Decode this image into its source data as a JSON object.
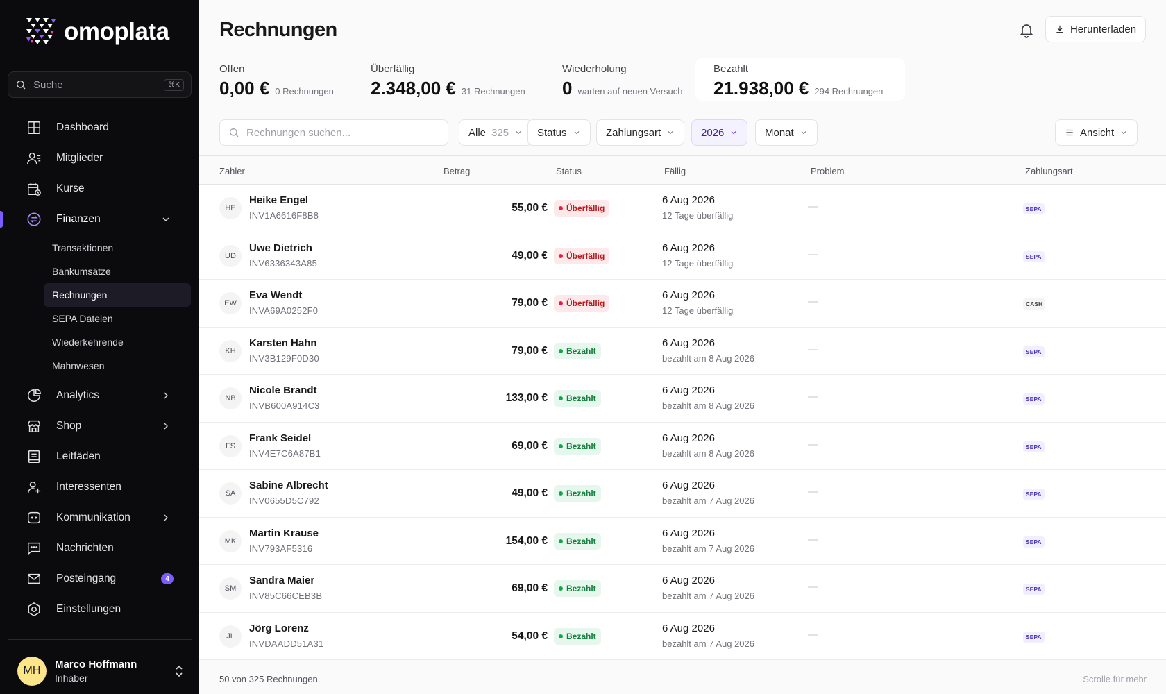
{
  "brand": {
    "name": "omoplata"
  },
  "sidebar": {
    "search_placeholder": "Suche",
    "search_shortcut": "⌘K",
    "items": [
      {
        "id": "dashboard",
        "label": "Dashboard",
        "icon": "dashboard-icon"
      },
      {
        "id": "mitglieder",
        "label": "Mitglieder",
        "icon": "members-icon"
      },
      {
        "id": "kurse",
        "label": "Kurse",
        "icon": "calendar-icon"
      },
      {
        "id": "finanzen",
        "label": "Finanzen",
        "icon": "finance-icon",
        "active": true,
        "expanded": true
      },
      {
        "id": "analytics",
        "label": "Analytics",
        "icon": "pie-chart-icon"
      },
      {
        "id": "shop",
        "label": "Shop",
        "icon": "store-icon"
      },
      {
        "id": "leitfaeden",
        "label": "Leitfäden",
        "icon": "book-icon"
      },
      {
        "id": "interessenten",
        "label": "Interessenten",
        "icon": "user-plus-icon"
      },
      {
        "id": "kommunikation",
        "label": "Kommunikation",
        "icon": "chat-bubble-icon"
      },
      {
        "id": "nachrichten",
        "label": "Nachrichten",
        "icon": "message-icon"
      },
      {
        "id": "posteingang",
        "label": "Posteingang",
        "icon": "mail-icon",
        "badge": "4"
      },
      {
        "id": "einstellungen",
        "label": "Einstellungen",
        "icon": "settings-icon"
      }
    ],
    "finanzen_sub": [
      "Transaktionen",
      "Bankumsätze",
      "Rechnungen",
      "SEPA Dateien",
      "Wiederkehrende",
      "Mahnwesen"
    ],
    "user": {
      "initials": "MH",
      "name": "Marco Hoffmann",
      "role": "Inhaber"
    }
  },
  "header": {
    "title": "Rechnungen",
    "download_label": "Herunterladen"
  },
  "stats": {
    "offen": {
      "label": "Offen",
      "value": "0,00 €",
      "sub": "0 Rechnungen"
    },
    "ueberfaellig": {
      "label": "Überfällig",
      "value": "2.348,00 €",
      "sub": "31 Rechnungen"
    },
    "wiederholung": {
      "label": "Wiederholung",
      "value": "0",
      "sub": "warten auf neuen Versuch"
    },
    "bezahlt": {
      "label": "Bezahlt",
      "value": "21.938,00 €",
      "sub": "294 Rechnungen"
    }
  },
  "filters": {
    "search_placeholder": "Rechnungen suchen...",
    "alle_label": "Alle",
    "alle_count": "325",
    "status_label": "Status",
    "zahlungsart_label": "Zahlungsart",
    "year_label": "2026",
    "monat_label": "Monat",
    "ansicht_label": "Ansicht"
  },
  "table": {
    "columns": [
      "Zahler",
      "Betrag",
      "Status",
      "Fällig",
      "Problem",
      "Zahlungsart"
    ],
    "rows": [
      {
        "initials": "HE",
        "name": "Heike Engel",
        "id": "INV1A6616F8B8",
        "amount": "55,00 €",
        "status": "Überfällig",
        "status_type": "overdue",
        "due": "6 Aug 2026",
        "due_sub": "12 Tage überfällig",
        "problem": "—",
        "method": "SEPA"
      },
      {
        "initials": "UD",
        "name": "Uwe Dietrich",
        "id": "INV6336343A85",
        "amount": "49,00 €",
        "status": "Überfällig",
        "status_type": "overdue",
        "due": "6 Aug 2026",
        "due_sub": "12 Tage überfällig",
        "problem": "—",
        "method": "SEPA"
      },
      {
        "initials": "EW",
        "name": "Eva Wendt",
        "id": "INVA69A0252F0",
        "amount": "79,00 €",
        "status": "Überfällig",
        "status_type": "overdue",
        "due": "6 Aug 2026",
        "due_sub": "12 Tage überfällig",
        "problem": "—",
        "method": "CASH"
      },
      {
        "initials": "KH",
        "name": "Karsten Hahn",
        "id": "INV3B129F0D30",
        "amount": "79,00 €",
        "status": "Bezahlt",
        "status_type": "paid",
        "due": "6 Aug 2026",
        "due_sub": "bezahlt am 8 Aug 2026",
        "problem": "—",
        "method": "SEPA"
      },
      {
        "initials": "NB",
        "name": "Nicole Brandt",
        "id": "INVB600A914C3",
        "amount": "133,00 €",
        "status": "Bezahlt",
        "status_type": "paid",
        "due": "6 Aug 2026",
        "due_sub": "bezahlt am 8 Aug 2026",
        "problem": "—",
        "method": "SEPA"
      },
      {
        "initials": "FS",
        "name": "Frank Seidel",
        "id": "INV4E7C6A87B1",
        "amount": "69,00 €",
        "status": "Bezahlt",
        "status_type": "paid",
        "due": "6 Aug 2026",
        "due_sub": "bezahlt am 8 Aug 2026",
        "problem": "—",
        "method": "SEPA"
      },
      {
        "initials": "SA",
        "name": "Sabine Albrecht",
        "id": "INV0655D5C792",
        "amount": "49,00 €",
        "status": "Bezahlt",
        "status_type": "paid",
        "due": "6 Aug 2026",
        "due_sub": "bezahlt am 7 Aug 2026",
        "problem": "—",
        "method": "SEPA"
      },
      {
        "initials": "MK",
        "name": "Martin Krause",
        "id": "INV793AF5316",
        "amount": "154,00 €",
        "status": "Bezahlt",
        "status_type": "paid",
        "due": "6 Aug 2026",
        "due_sub": "bezahlt am 7 Aug 2026",
        "problem": "—",
        "method": "SEPA"
      },
      {
        "initials": "SM",
        "name": "Sandra Maier",
        "id": "INV85C66CEB3B",
        "amount": "69,00 €",
        "status": "Bezahlt",
        "status_type": "paid",
        "due": "6 Aug 2026",
        "due_sub": "bezahlt am 7 Aug 2026",
        "problem": "—",
        "method": "SEPA"
      },
      {
        "initials": "JL",
        "name": "Jörg Lorenz",
        "id": "INVDAADD51A31",
        "amount": "54,00 €",
        "status": "Bezahlt",
        "status_type": "paid",
        "due": "6 Aug 2026",
        "due_sub": "bezahlt am 7 Aug 2026",
        "problem": "—",
        "method": "SEPA"
      }
    ]
  },
  "footer": {
    "count_text": "50 von 325 Rechnungen",
    "scroll_hint": "Scrolle für mehr"
  },
  "colors": {
    "accent": "#7c5cff",
    "overdue": "#e11d48",
    "paid": "#16a34a",
    "sidebar_bg": "#0b0b0d"
  }
}
